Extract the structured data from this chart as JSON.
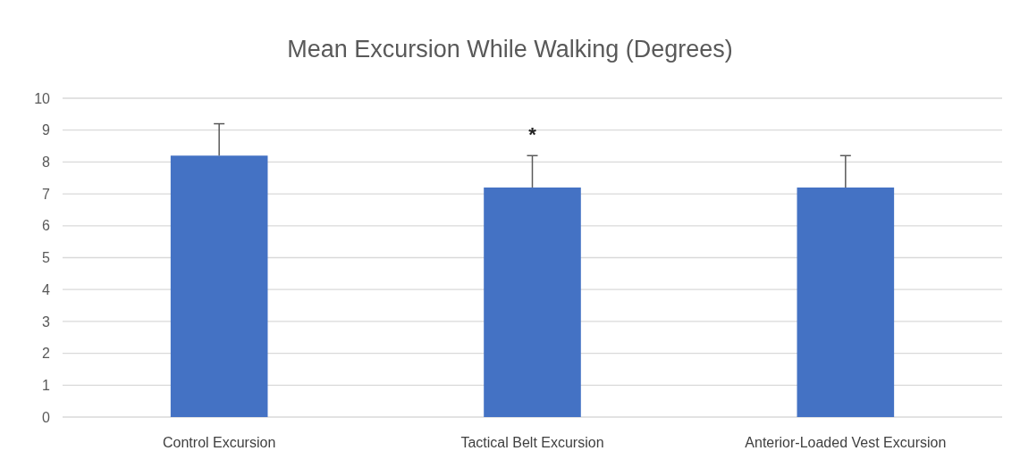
{
  "chart_data": {
    "type": "bar",
    "title": "Mean Excursion While Walking (Degrees)",
    "categories": [
      "Control Excursion",
      "Tactical Belt Excursion",
      "Anterior-Loaded Vest Excursion"
    ],
    "values": [
      8.2,
      7.2,
      7.2
    ],
    "errors": [
      [
        8.2,
        9.2
      ],
      [
        7.2,
        8.2
      ],
      [
        7.2,
        8.2
      ]
    ],
    "color": "#4472c4",
    "ylim": [
      0,
      10
    ],
    "yticks": [
      0,
      1,
      2,
      3,
      4,
      5,
      6,
      7,
      8,
      9,
      10
    ],
    "grid": "y",
    "annotations": [
      "*"
    ]
  }
}
